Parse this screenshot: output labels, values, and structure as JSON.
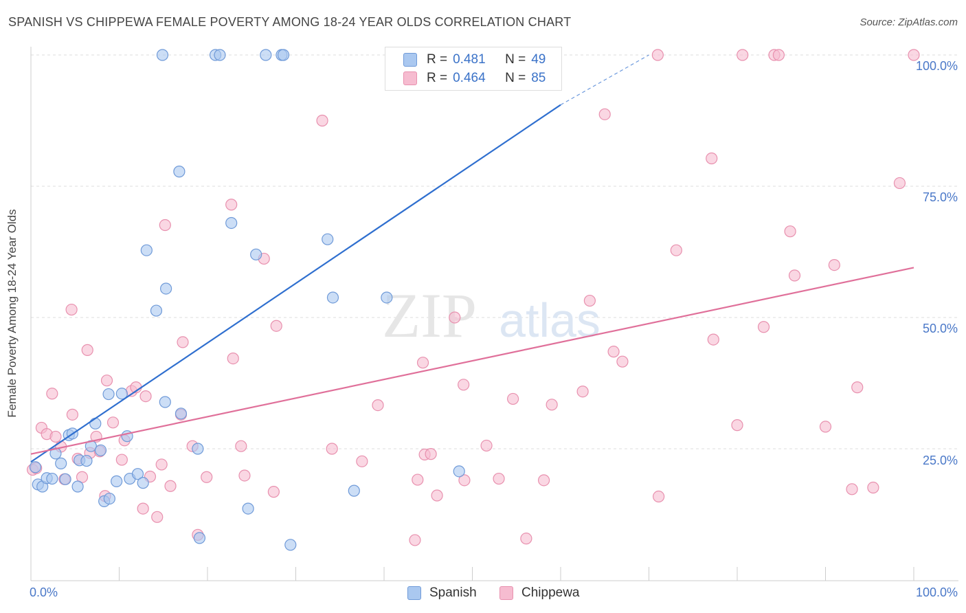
{
  "title": "SPANISH VS CHIPPEWA FEMALE POVERTY AMONG 18-24 YEAR OLDS CORRELATION CHART",
  "source": "Source: ZipAtlas.com",
  "watermark": {
    "zip": "ZIP",
    "atlas": "atlas"
  },
  "legend": {
    "rows": [
      {
        "r_label": "R =",
        "r_value": "0.481",
        "n_label": "N =",
        "n_value": "49"
      },
      {
        "r_label": "R =",
        "r_value": "0.464",
        "n_label": "N =",
        "n_value": "85"
      }
    ]
  },
  "bottom_legend": [
    "Spanish",
    "Chippewa"
  ],
  "colors": {
    "spanish_fill": "#aac8f0",
    "spanish_stroke": "#6f9ad8",
    "spanish_line": "#2f6fcf",
    "chippewa_fill": "#f6bcd0",
    "chippewa_stroke": "#e890ae",
    "chippewa_line": "#e0709a",
    "axis_text": "#4a78c8",
    "grid": "#dddddd"
  },
  "chart_data": {
    "type": "scatter",
    "xlabel": "",
    "ylabel": "Female Poverty Among 18-24 Year Olds",
    "xlim": [
      0,
      100
    ],
    "ylim": [
      0,
      100
    ],
    "x_tick_labels": [
      "0.0%",
      "100.0%"
    ],
    "y_tick_labels": [
      "100.0%",
      "75.0%",
      "50.0%",
      "25.0%"
    ],
    "y_tick_values": [
      100,
      75,
      50,
      25
    ],
    "grid": true,
    "legend_position": "top-center",
    "series": [
      {
        "name": "Spanish",
        "r": 0.481,
        "n": 49,
        "trend": {
          "x0": 0,
          "y0": 22.5,
          "x1": 60,
          "y1": 90.5,
          "dashed_to_x": 70,
          "dashed_to_y": 100
        },
        "points": [
          [
            0.5,
            21.5
          ],
          [
            0.8,
            18.2
          ],
          [
            1.3,
            17.8
          ],
          [
            1.8,
            19.4
          ],
          [
            2.4,
            19.3
          ],
          [
            2.8,
            24.1
          ],
          [
            3.4,
            22.2
          ],
          [
            3.9,
            19.2
          ],
          [
            4.3,
            27.6
          ],
          [
            4.7,
            27.9
          ],
          [
            5.3,
            17.8
          ],
          [
            5.5,
            22.8
          ],
          [
            6.3,
            22.7
          ],
          [
            6.8,
            25.5
          ],
          [
            7.3,
            29.8
          ],
          [
            7.9,
            24.7
          ],
          [
            8.3,
            15.0
          ],
          [
            8.8,
            35.4
          ],
          [
            8.9,
            15.5
          ],
          [
            9.7,
            18.8
          ],
          [
            10.3,
            35.5
          ],
          [
            10.9,
            27.4
          ],
          [
            11.2,
            19.3
          ],
          [
            12.1,
            20.2
          ],
          [
            12.7,
            18.5
          ],
          [
            13.1,
            62.8
          ],
          [
            14.2,
            51.3
          ],
          [
            14.9,
            100
          ],
          [
            15.2,
            33.9
          ],
          [
            15.3,
            55.5
          ],
          [
            16.8,
            77.8
          ],
          [
            17.0,
            31.7
          ],
          [
            18.9,
            25.0
          ],
          [
            19.1,
            8.0
          ],
          [
            20.9,
            100
          ],
          [
            21.4,
            100
          ],
          [
            22.7,
            68.0
          ],
          [
            24.6,
            13.6
          ],
          [
            25.5,
            62.0
          ],
          [
            26.6,
            100
          ],
          [
            28.4,
            100
          ],
          [
            28.6,
            100
          ],
          [
            29.4,
            6.7
          ],
          [
            33.6,
            64.9
          ],
          [
            34.2,
            53.8
          ],
          [
            36.6,
            17.0
          ],
          [
            40.3,
            53.8
          ],
          [
            48.5,
            20.7
          ],
          [
            51.0,
            100
          ]
        ]
      },
      {
        "name": "Chippewa",
        "r": 0.464,
        "n": 85,
        "trend": {
          "x0": 0,
          "y0": 24.0,
          "x1": 100,
          "y1": 59.5
        },
        "points": [
          [
            0.2,
            21.0
          ],
          [
            0.6,
            21.3
          ],
          [
            1.2,
            29.0
          ],
          [
            1.8,
            27.8
          ],
          [
            2.4,
            35.5
          ],
          [
            2.8,
            27.3
          ],
          [
            3.4,
            25.4
          ],
          [
            3.8,
            19.2
          ],
          [
            4.6,
            51.5
          ],
          [
            4.7,
            31.5
          ],
          [
            5.3,
            23.1
          ],
          [
            5.8,
            19.6
          ],
          [
            6.4,
            43.8
          ],
          [
            6.7,
            24.2
          ],
          [
            7.4,
            27.3
          ],
          [
            7.8,
            24.5
          ],
          [
            8.4,
            16.0
          ],
          [
            8.6,
            38.0
          ],
          [
            9.3,
            30.0
          ],
          [
            10.3,
            22.9
          ],
          [
            10.6,
            26.6
          ],
          [
            11.4,
            36.0
          ],
          [
            11.9,
            36.7
          ],
          [
            12.7,
            13.6
          ],
          [
            13.0,
            35.0
          ],
          [
            13.5,
            19.7
          ],
          [
            14.3,
            12.0
          ],
          [
            14.8,
            22.0
          ],
          [
            15.2,
            67.6
          ],
          [
            15.8,
            17.9
          ],
          [
            17.0,
            31.5
          ],
          [
            17.2,
            45.3
          ],
          [
            18.3,
            25.5
          ],
          [
            18.9,
            8.6
          ],
          [
            19.9,
            19.6
          ],
          [
            22.7,
            71.5
          ],
          [
            22.9,
            42.2
          ],
          [
            23.8,
            25.5
          ],
          [
            24.2,
            19.9
          ],
          [
            26.4,
            61.2
          ],
          [
            27.5,
            16.8
          ],
          [
            27.8,
            48.4
          ],
          [
            33.0,
            87.5
          ],
          [
            34.1,
            25.0
          ],
          [
            37.5,
            22.6
          ],
          [
            39.3,
            33.3
          ],
          [
            43.5,
            7.6
          ],
          [
            43.8,
            19.1
          ],
          [
            44.4,
            41.4
          ],
          [
            44.6,
            23.9
          ],
          [
            45.3,
            24.0
          ],
          [
            46.0,
            16.1
          ],
          [
            48.0,
            50.0
          ],
          [
            49.0,
            37.2
          ],
          [
            49.1,
            19.0
          ],
          [
            51.6,
            25.6
          ],
          [
            53.0,
            19.3
          ],
          [
            54.6,
            34.5
          ],
          [
            56.1,
            7.9
          ],
          [
            58.1,
            19.0
          ],
          [
            59.0,
            33.4
          ],
          [
            62.5,
            35.9
          ],
          [
            63.3,
            53.2
          ],
          [
            65.0,
            88.7
          ],
          [
            66.0,
            43.5
          ],
          [
            67.0,
            41.6
          ],
          [
            71.0,
            100
          ],
          [
            71.1,
            15.9
          ],
          [
            73.1,
            62.8
          ],
          [
            77.1,
            80.3
          ],
          [
            77.3,
            45.8
          ],
          [
            80.0,
            29.5
          ],
          [
            80.6,
            100
          ],
          [
            83.0,
            48.2
          ],
          [
            84.2,
            100
          ],
          [
            84.7,
            100
          ],
          [
            86.0,
            66.4
          ],
          [
            86.5,
            58.0
          ],
          [
            90.0,
            29.2
          ],
          [
            91.0,
            60.0
          ],
          [
            93.0,
            17.3
          ],
          [
            93.6,
            36.7
          ],
          [
            95.4,
            17.6
          ],
          [
            98.4,
            75.6
          ],
          [
            100.0,
            100
          ]
        ]
      }
    ]
  }
}
